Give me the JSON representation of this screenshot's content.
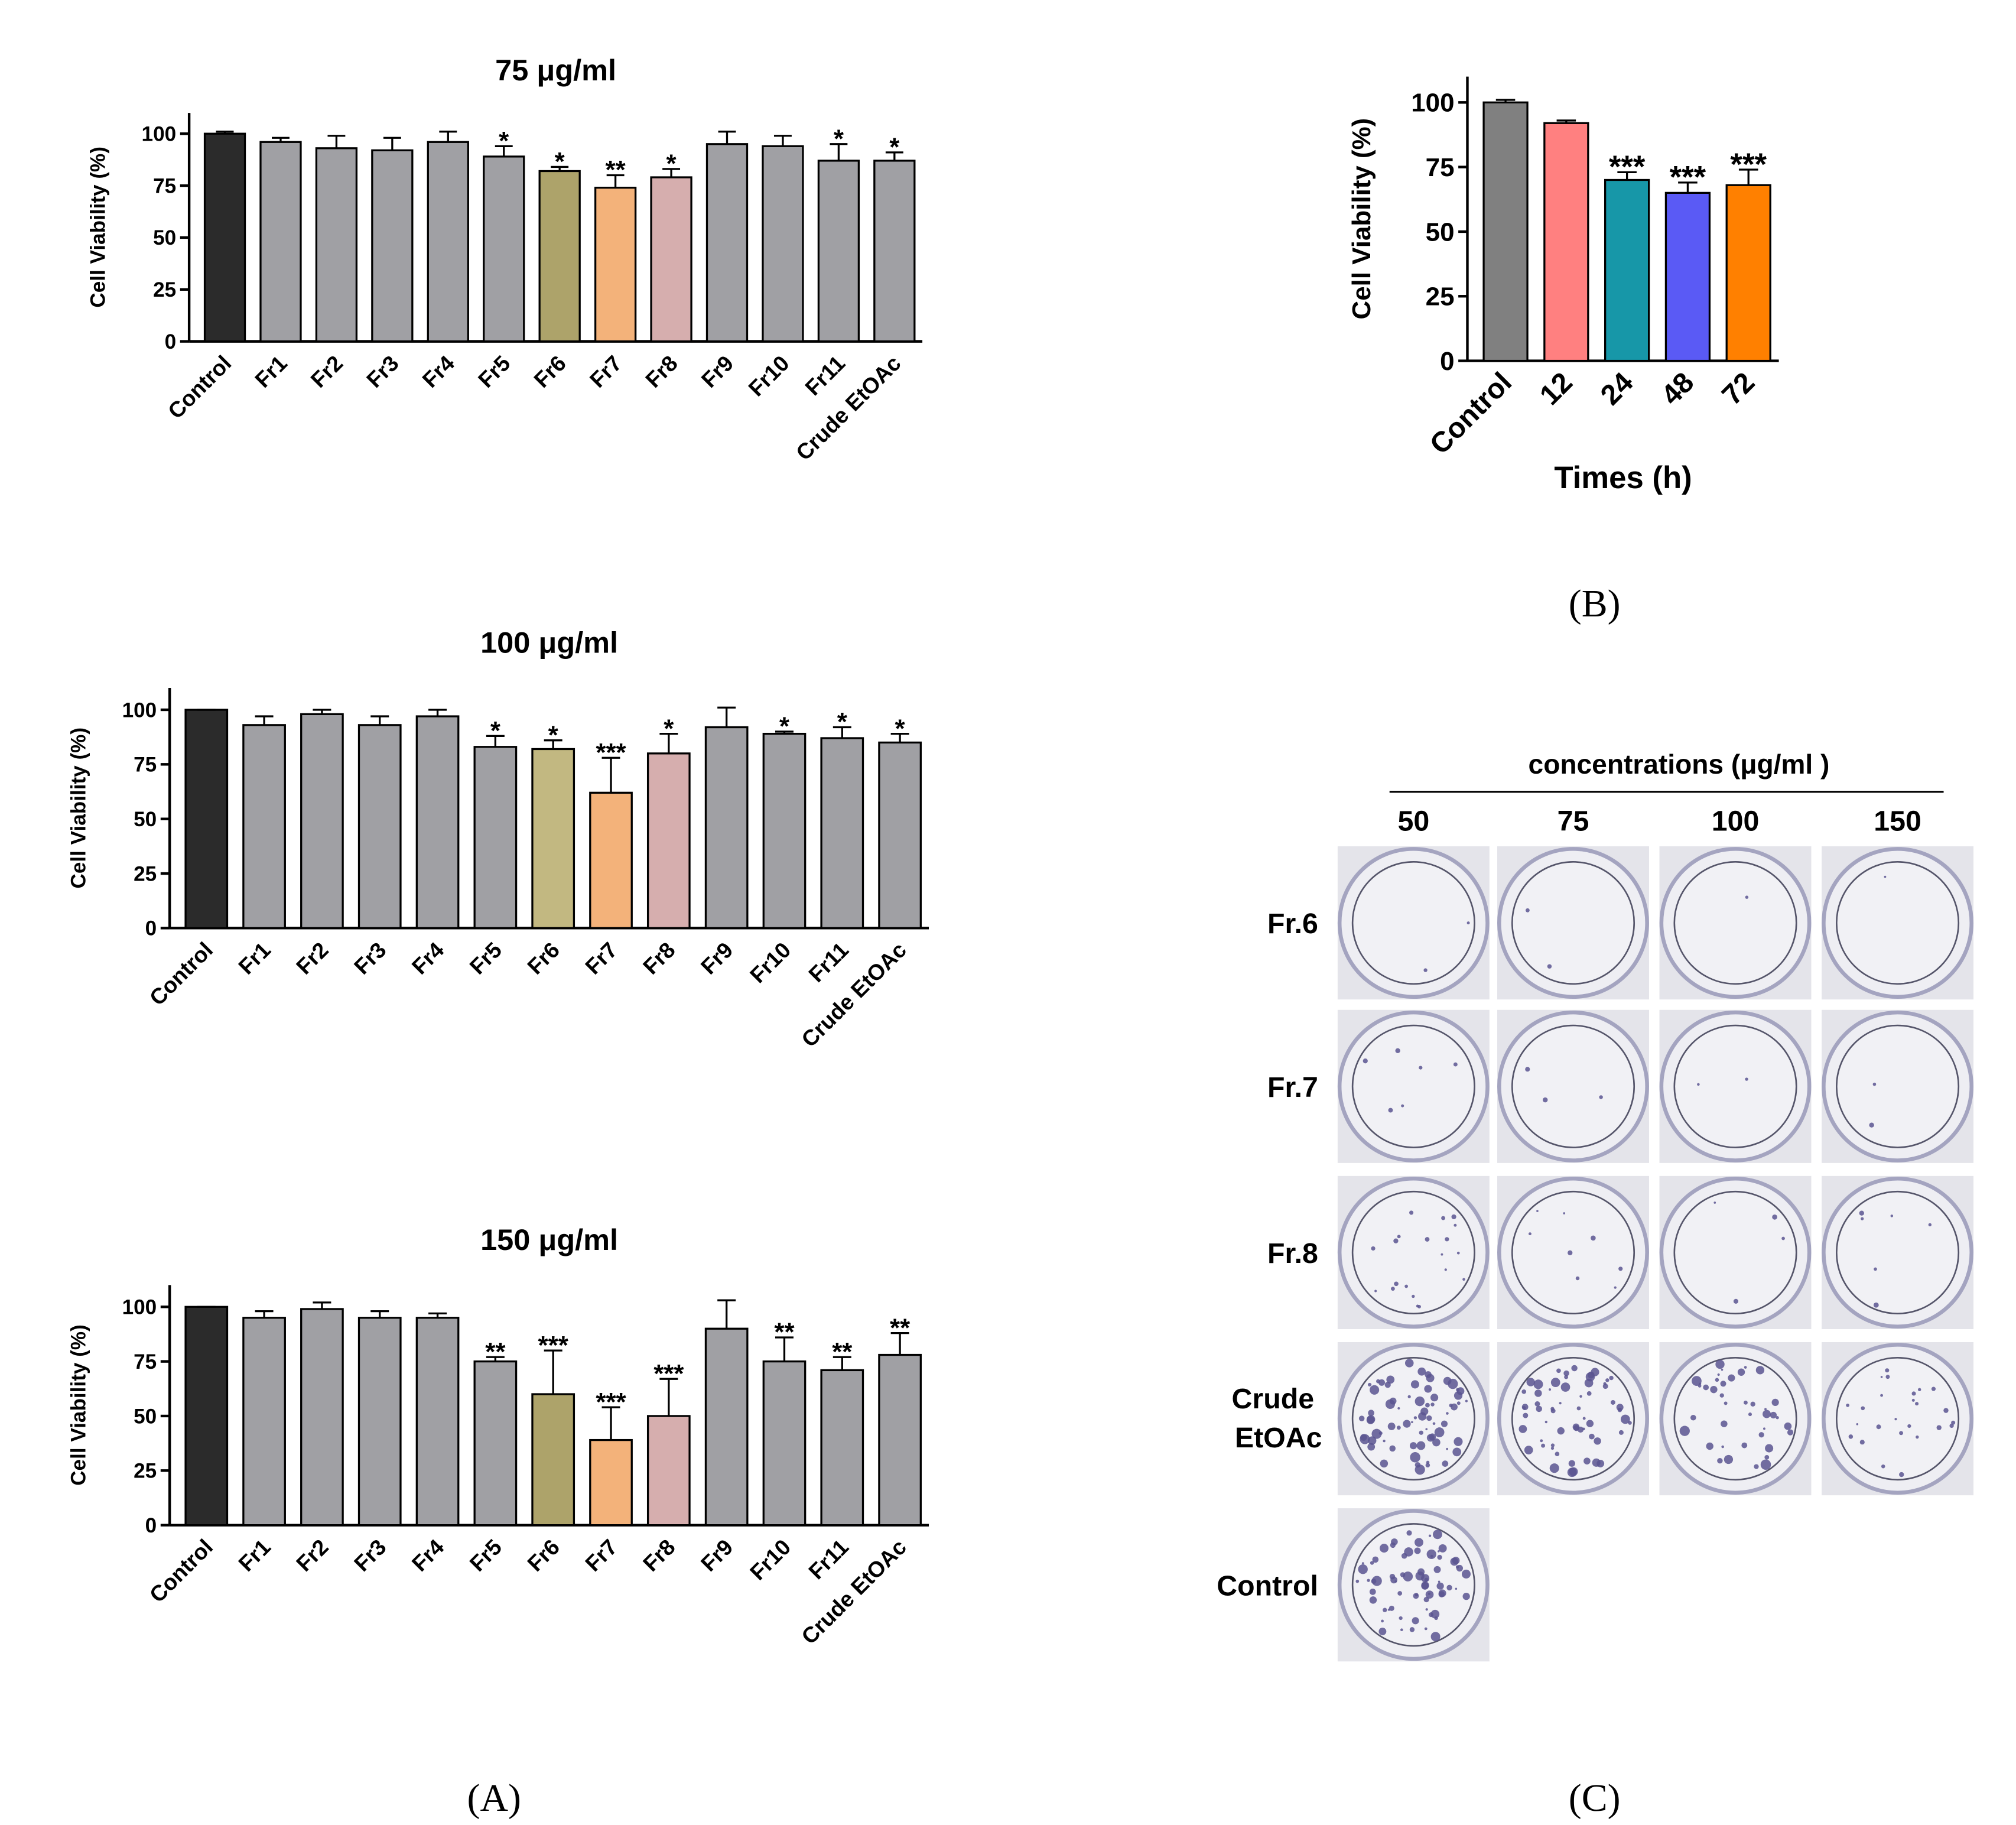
{
  "chart_data": [
    {
      "type": "bar",
      "title": "75 μg/ml",
      "y_label": "Cell Viability (%)",
      "categories": [
        "Control",
        "Fr1",
        "Fr2",
        "Fr3",
        "Fr4",
        "Fr5",
        "Fr6",
        "Fr7",
        "Fr8",
        "Fr9",
        "Fr10",
        "Fr11",
        "Crude EtOAc"
      ],
      "values": [
        100,
        96,
        93,
        92,
        96,
        89,
        82,
        74,
        79,
        95,
        94,
        87,
        87
      ],
      "errors": [
        1,
        2,
        6,
        6,
        5,
        5,
        2,
        6,
        4,
        6,
        5,
        8,
        4
      ],
      "annotations": [
        null,
        null,
        null,
        null,
        null,
        "*",
        "*",
        "**",
        "*",
        null,
        null,
        "*",
        "*"
      ],
      "colors": [
        "#2b2b2b",
        "#a0a0a4",
        "#a0a0a4",
        "#a0a0a4",
        "#a0a0a4",
        "#a0a0a4",
        "#ada36a",
        "#f3b27a",
        "#d6aeae",
        "#a0a0a4",
        "#a0a0a4",
        "#a0a0a4",
        "#a0a0a4"
      ],
      "ylim": [
        0,
        110
      ],
      "yticks": [
        0,
        25,
        50,
        75,
        100
      ]
    },
    {
      "type": "bar",
      "title": "100 μg/ml",
      "y_label": "Cell Viability (%)",
      "categories": [
        "Control",
        "Fr1",
        "Fr2",
        "Fr3",
        "Fr4",
        "Fr5",
        "Fr6",
        "Fr7",
        "Fr8",
        "Fr9",
        "Fr10",
        "Fr11",
        "Crude EtOAc"
      ],
      "values": [
        100,
        93,
        98,
        93,
        97,
        83,
        82,
        62,
        80,
        92,
        89,
        87,
        85
      ],
      "errors": [
        0,
        4,
        2,
        4,
        3,
        5,
        4,
        16,
        9,
        9,
        1,
        5,
        4
      ],
      "annotations": [
        null,
        null,
        null,
        null,
        null,
        "*",
        "*",
        "***",
        "*",
        null,
        "*",
        "*",
        "*"
      ],
      "colors": [
        "#2b2b2b",
        "#a0a0a4",
        "#a0a0a4",
        "#a0a0a4",
        "#a0a0a4",
        "#a0a0a4",
        "#c2b881",
        "#f3b27a",
        "#d6aeae",
        "#a0a0a4",
        "#a0a0a4",
        "#a0a0a4",
        "#a0a0a4"
      ],
      "ylim": [
        0,
        110
      ],
      "yticks": [
        0,
        25,
        50,
        75,
        100
      ]
    },
    {
      "type": "bar",
      "title": "150 μg/ml",
      "y_label": "Cell Viability (%)",
      "categories": [
        "Control",
        "Fr1",
        "Fr2",
        "Fr3",
        "Fr4",
        "Fr5",
        "Fr6",
        "Fr7",
        "Fr8",
        "Fr9",
        "Fr10",
        "Fr11",
        "Crude EtOAc"
      ],
      "values": [
        100,
        95,
        99,
        95,
        95,
        75,
        60,
        39,
        50,
        90,
        75,
        71,
        78
      ],
      "errors": [
        0,
        3,
        3,
        3,
        2,
        2,
        20,
        15,
        17,
        13,
        11,
        6,
        10
      ],
      "annotations": [
        null,
        null,
        null,
        null,
        null,
        "**",
        "***",
        "***",
        "***",
        null,
        "**",
        "**",
        "**"
      ],
      "colors": [
        "#2b2b2b",
        "#a0a0a4",
        "#a0a0a4",
        "#a0a0a4",
        "#a0a0a4",
        "#a0a0a4",
        "#ada36a",
        "#f3b27a",
        "#d6aeae",
        "#a0a0a4",
        "#a0a0a4",
        "#a0a0a4",
        "#a0a0a4"
      ],
      "ylim": [
        0,
        110
      ],
      "yticks": [
        0,
        25,
        50,
        75,
        100
      ]
    },
    {
      "type": "bar",
      "y_label": "Cell Viability (%)",
      "x_label": "Times (h)",
      "categories": [
        "Control",
        "12",
        "24",
        "48",
        "72"
      ],
      "values": [
        100,
        92,
        70,
        65,
        68
      ],
      "errors": [
        1,
        1,
        3,
        4,
        6
      ],
      "annotations": [
        null,
        null,
        "***",
        "***",
        "***"
      ],
      "colors": [
        "#808080",
        "#ff8080",
        "#1797a8",
        "#5a5af5",
        "#ff8000"
      ],
      "ylim": [
        0,
        110
      ],
      "yticks": [
        0,
        25,
        50,
        75,
        100
      ]
    }
  ],
  "colony_assay": {
    "title": "concentrations (μg/ml )",
    "columns": [
      "50",
      "75",
      "100",
      "150"
    ],
    "rows": [
      "Fr.6",
      "Fr.7",
      "Fr.8",
      "Crude EtOAc",
      "Control"
    ]
  },
  "panel_labels": [
    "(A)",
    "(B)",
    "(C)"
  ]
}
